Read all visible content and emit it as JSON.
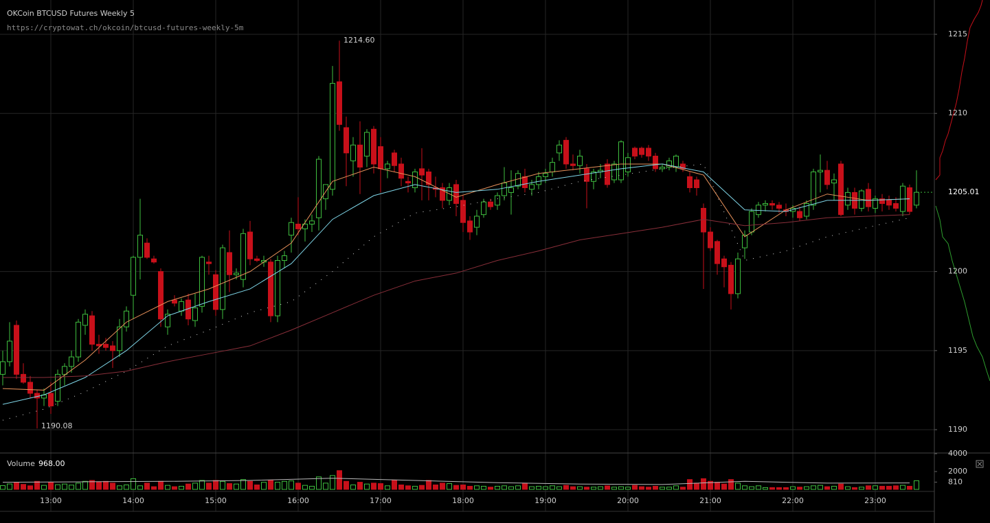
{
  "chart_data": {
    "type": "candlestick",
    "title": "OKCoin BTCUSD Futures Weekly 5",
    "subtitle": "https://cryptowat.ch/okcoin/btcusd-futures-weekly-5m",
    "up_color": "#3fbf3f",
    "down_color": "#c8101a",
    "ylim": [
      1188.96,
      1217.17
    ],
    "yticks": [
      1190,
      1195,
      1200,
      1210,
      1215
    ],
    "last_price": 1205.01,
    "high_label": {
      "value": 1214.6,
      "label": "1214.60"
    },
    "low_label": 1190.08,
    "xlim": [
      -0.4,
      135.6
    ],
    "xticks": [
      {
        "value": 7,
        "label": "13:00"
      },
      {
        "value": 19,
        "label": "14:00"
      },
      {
        "value": 31,
        "label": "15:00"
      },
      {
        "value": 43,
        "label": "16:00"
      },
      {
        "value": 55,
        "label": "17:00"
      },
      {
        "value": 67,
        "label": "18:00"
      },
      {
        "value": 79,
        "label": "19:00"
      },
      {
        "value": 91,
        "label": "20:00"
      },
      {
        "value": 103,
        "label": "21:00"
      },
      {
        "value": 115,
        "label": "22:00"
      },
      {
        "value": 127,
        "label": "23:00"
      }
    ],
    "grid": true,
    "candles": [
      [
        1193.5,
        1195.0,
        1192.8,
        1194.3,
        420
      ],
      [
        1194.3,
        1196.8,
        1194.0,
        1195.6,
        610
      ],
      [
        1196.6,
        1196.9,
        1193.2,
        1193.5,
        800
      ],
      [
        1193.5,
        1194.2,
        1192.9,
        1193.0,
        560
      ],
      [
        1193.0,
        1193.4,
        1192.0,
        1192.3,
        400
      ],
      [
        1192.3,
        1192.5,
        1190.08,
        1192.0,
        900
      ],
      [
        1192.0,
        1192.6,
        1191.5,
        1192.2,
        450
      ],
      [
        1192.3,
        1193.0,
        1191.0,
        1191.5,
        780
      ],
      [
        1191.8,
        1193.8,
        1191.5,
        1193.5,
        520
      ],
      [
        1193.5,
        1194.2,
        1192.8,
        1194.0,
        600
      ],
      [
        1194.0,
        1195.0,
        1193.6,
        1194.6,
        480
      ],
      [
        1194.6,
        1197.0,
        1194.3,
        1196.8,
        700
      ],
      [
        1196.6,
        1197.6,
        1196.0,
        1197.3,
        900
      ],
      [
        1197.2,
        1197.5,
        1195.0,
        1195.4,
        1000
      ],
      [
        1195.4,
        1196.0,
        1194.8,
        1195.3,
        850
      ],
      [
        1195.4,
        1195.8,
        1195.0,
        1195.2,
        900
      ],
      [
        1195.3,
        1195.6,
        1193.9,
        1195.0,
        700
      ],
      [
        1195.0,
        1197.0,
        1194.6,
        1196.5,
        400
      ],
      [
        1196.5,
        1197.8,
        1196.2,
        1197.5,
        500
      ],
      [
        1198.5,
        1201.0,
        1197.0,
        1200.9,
        1200
      ],
      [
        1200.9,
        1204.6,
        1199.5,
        1202.3,
        400
      ],
      [
        1201.8,
        1202.1,
        1200.8,
        1200.9,
        700
      ],
      [
        1200.8,
        1201.0,
        1200.5,
        1200.6,
        300
      ],
      [
        1200.0,
        1200.2,
        1196.5,
        1197.0,
        900
      ],
      [
        1196.5,
        1197.6,
        1196.0,
        1197.3,
        450
      ],
      [
        1198.2,
        1198.5,
        1197.8,
        1198.0,
        300
      ],
      [
        1197.5,
        1198.3,
        1197.2,
        1198.1,
        350
      ],
      [
        1198.2,
        1198.6,
        1196.6,
        1197.0,
        600
      ],
      [
        1196.9,
        1198.6,
        1196.5,
        1197.7,
        700
      ],
      [
        1197.8,
        1201.0,
        1197.4,
        1200.9,
        1000
      ],
      [
        1200.6,
        1201.0,
        1199.8,
        1200.5,
        700
      ],
      [
        1199.8,
        1200.1,
        1197.2,
        1197.6,
        1000
      ],
      [
        1197.6,
        1201.7,
        1197.0,
        1201.5,
        900
      ],
      [
        1201.2,
        1202.6,
        1198.7,
        1199.8,
        650
      ],
      [
        1199.8,
        1200.2,
        1199.5,
        1199.9,
        600
      ],
      [
        1199.5,
        1202.7,
        1199.0,
        1202.4,
        1100
      ],
      [
        1202.5,
        1203.2,
        1200.4,
        1200.8,
        900
      ],
      [
        1200.8,
        1201.0,
        1200.6,
        1200.7,
        500
      ],
      [
        1200.6,
        1201.0,
        1200.3,
        1200.7,
        800
      ],
      [
        1200.6,
        1200.8,
        1196.8,
        1197.2,
        1000
      ],
      [
        1197.2,
        1201.0,
        1196.8,
        1200.7,
        800
      ],
      [
        1200.7,
        1201.3,
        1200.2,
        1201.0,
        900
      ],
      [
        1202.3,
        1203.4,
        1201.2,
        1203.1,
        950
      ],
      [
        1203.0,
        1204.7,
        1202.3,
        1202.7,
        700
      ],
      [
        1202.7,
        1203.3,
        1201.9,
        1203.0,
        450
      ],
      [
        1203.0,
        1203.6,
        1202.5,
        1203.2,
        350
      ],
      [
        1203.4,
        1207.3,
        1202.6,
        1207.1,
        1400
      ],
      [
        1204.6,
        1205.5,
        1203.9,
        1205.5,
        700
      ],
      [
        1205.2,
        1213.0,
        1204.8,
        1211.9,
        1550
      ],
      [
        1212.0,
        1214.6,
        1208.9,
        1209.3,
        2100
      ],
      [
        1209.1,
        1209.8,
        1205.4,
        1207.5,
        900
      ],
      [
        1207.0,
        1208.5,
        1206.0,
        1208.0,
        500
      ],
      [
        1208.0,
        1209.5,
        1204.9,
        1206.6,
        800
      ],
      [
        1207.3,
        1209.0,
        1206.6,
        1208.8,
        600
      ],
      [
        1209.0,
        1209.2,
        1206.2,
        1206.8,
        700
      ],
      [
        1207.9,
        1208.5,
        1205.0,
        1206.5,
        650
      ],
      [
        1206.5,
        1207.0,
        1205.9,
        1206.8,
        400
      ],
      [
        1207.5,
        1207.7,
        1206.3,
        1206.7,
        1000
      ],
      [
        1206.8,
        1207.2,
        1205.4,
        1205.9,
        500
      ],
      [
        1205.7,
        1206.0,
        1205.0,
        1205.6,
        400
      ],
      [
        1205.3,
        1206.5,
        1205.0,
        1206.3,
        350
      ],
      [
        1206.5,
        1207.8,
        1204.5,
        1206.1,
        450
      ],
      [
        1206.3,
        1206.5,
        1204.5,
        1205.5,
        1000
      ],
      [
        1205.3,
        1206.0,
        1204.7,
        1205.2,
        500
      ],
      [
        1205.3,
        1205.6,
        1204.0,
        1204.5,
        700
      ],
      [
        1204.5,
        1205.6,
        1204.2,
        1205.3,
        650
      ],
      [
        1205.5,
        1205.8,
        1203.5,
        1204.3,
        450
      ],
      [
        1204.5,
        1204.8,
        1202.5,
        1203.1,
        500
      ],
      [
        1203.2,
        1203.5,
        1202.0,
        1202.5,
        350
      ],
      [
        1202.8,
        1203.9,
        1202.3,
        1203.5,
        400
      ],
      [
        1203.6,
        1204.6,
        1203.4,
        1204.4,
        350
      ],
      [
        1204.4,
        1204.6,
        1203.9,
        1204.1,
        250
      ],
      [
        1204.2,
        1205.0,
        1203.9,
        1204.8,
        350
      ],
      [
        1204.8,
        1206.6,
        1204.5,
        1205.6,
        400
      ],
      [
        1205.0,
        1206.4,
        1203.6,
        1205.3,
        300
      ],
      [
        1205.4,
        1206.4,
        1205.2,
        1206.2,
        400
      ],
      [
        1206.0,
        1206.5,
        1205.0,
        1205.3,
        700
      ],
      [
        1205.2,
        1205.8,
        1204.8,
        1205.5,
        300
      ],
      [
        1205.5,
        1206.3,
        1205.2,
        1206.0,
        350
      ],
      [
        1206.0,
        1206.5,
        1205.6,
        1206.2,
        300
      ],
      [
        1206.3,
        1207.2,
        1206.0,
        1206.9,
        400
      ],
      [
        1207.5,
        1208.3,
        1207.0,
        1208.0,
        300
      ],
      [
        1208.3,
        1208.5,
        1206.5,
        1206.8,
        450
      ],
      [
        1206.8,
        1207.4,
        1206.4,
        1206.7,
        300
      ],
      [
        1206.7,
        1207.7,
        1206.2,
        1207.3,
        300
      ],
      [
        1206.5,
        1206.8,
        1204.0,
        1205.7,
        250
      ],
      [
        1205.7,
        1206.5,
        1205.2,
        1206.3,
        250
      ],
      [
        1206.3,
        1206.8,
        1205.9,
        1206.4,
        300
      ],
      [
        1206.8,
        1207.1,
        1205.3,
        1205.5,
        400
      ],
      [
        1205.8,
        1207.0,
        1205.6,
        1206.8,
        250
      ],
      [
        1205.8,
        1208.3,
        1205.6,
        1208.2,
        300
      ],
      [
        1206.3,
        1207.5,
        1206.0,
        1207.2,
        250
      ],
      [
        1207.8,
        1207.9,
        1207.1,
        1207.3,
        450
      ],
      [
        1207.8,
        1207.9,
        1207.2,
        1207.4,
        300
      ],
      [
        1207.8,
        1208.0,
        1207.0,
        1207.3,
        250
      ],
      [
        1207.3,
        1207.5,
        1206.3,
        1206.5,
        350
      ],
      [
        1206.5,
        1206.8,
        1206.3,
        1206.6,
        250
      ],
      [
        1206.6,
        1207.2,
        1206.4,
        1207.0,
        250
      ],
      [
        1206.6,
        1207.4,
        1206.3,
        1207.3,
        400
      ],
      [
        1206.8,
        1207.0,
        1206.3,
        1206.5,
        250
      ],
      [
        1206.0,
        1206.3,
        1205.0,
        1205.3,
        1100
      ],
      [
        1205.8,
        1206.0,
        1204.8,
        1205.3,
        700
      ],
      [
        1204.0,
        1204.3,
        1198.9,
        1202.5,
        1200
      ],
      [
        1202.5,
        1202.8,
        1201.3,
        1201.5,
        900
      ],
      [
        1201.9,
        1202.0,
        1199.8,
        1200.5,
        800
      ],
      [
        1200.8,
        1201.0,
        1199.0,
        1200.3,
        600
      ],
      [
        1200.4,
        1200.6,
        1197.6,
        1198.6,
        1100
      ],
      [
        1198.6,
        1201.2,
        1198.3,
        1200.8,
        700
      ],
      [
        1201.5,
        1202.6,
        1200.8,
        1202.3,
        400
      ],
      [
        1202.5,
        1204.0,
        1202.3,
        1203.8,
        300
      ],
      [
        1203.6,
        1204.4,
        1203.4,
        1204.2,
        400
      ],
      [
        1204.2,
        1204.5,
        1203.8,
        1204.3,
        200
      ],
      [
        1204.3,
        1204.5,
        1203.9,
        1204.2,
        200
      ],
      [
        1204.2,
        1204.4,
        1203.7,
        1204.0,
        200
      ],
      [
        1203.9,
        1204.3,
        1203.5,
        1203.8,
        200
      ],
      [
        1203.8,
        1204.2,
        1203.4,
        1204.0,
        300
      ],
      [
        1203.8,
        1204.1,
        1203.2,
        1203.4,
        250
      ],
      [
        1203.5,
        1204.5,
        1203.3,
        1204.3,
        300
      ],
      [
        1204.2,
        1206.5,
        1203.9,
        1206.3,
        400
      ],
      [
        1206.3,
        1207.4,
        1205.0,
        1206.4,
        450
      ],
      [
        1206.4,
        1207.0,
        1205.2,
        1205.5,
        300
      ],
      [
        1205.6,
        1206.2,
        1204.5,
        1205.8,
        350
      ],
      [
        1206.8,
        1207.0,
        1203.5,
        1203.6,
        600
      ],
      [
        1204.2,
        1205.3,
        1203.9,
        1205.0,
        300
      ],
      [
        1205.0,
        1205.3,
        1203.6,
        1204.0,
        200
      ],
      [
        1204.0,
        1205.2,
        1203.8,
        1205.1,
        250
      ],
      [
        1205.2,
        1205.6,
        1203.8,
        1204.1,
        400
      ],
      [
        1204.0,
        1204.8,
        1203.7,
        1204.6,
        400
      ],
      [
        1204.6,
        1204.9,
        1203.8,
        1204.3,
        350
      ],
      [
        1204.5,
        1204.8,
        1203.9,
        1204.2,
        350
      ],
      [
        1204.3,
        1204.7,
        1203.8,
        1204.0,
        400
      ],
      [
        1203.8,
        1205.6,
        1203.5,
        1205.4,
        450
      ],
      [
        1205.3,
        1205.5,
        1203.6,
        1203.8,
        350
      ],
      [
        1204.2,
        1206.4,
        1204.0,
        1205.01,
        968
      ]
    ],
    "overlays": [
      {
        "color": "#e8915a",
        "x": [
          0,
          6,
          12,
          18,
          24,
          30,
          36,
          42,
          48,
          54,
          60,
          66,
          72,
          78,
          84,
          90,
          96,
          102,
          108,
          114,
          120,
          126,
          132
        ],
        "values": [
          1192.6,
          1192.5,
          1194.4,
          1196.8,
          1198.1,
          1198.9,
          1200.0,
          1201.8,
          1205.7,
          1206.6,
          1206.0,
          1204.7,
          1205.5,
          1206.2,
          1206.5,
          1206.8,
          1206.8,
          1206.1,
          1202.2,
          1203.9,
          1204.9,
          1204.5,
          1204.6
        ]
      },
      {
        "color": "#7fd6e8",
        "x": [
          0,
          6,
          12,
          18,
          24,
          30,
          36,
          42,
          48,
          54,
          60,
          66,
          72,
          78,
          84,
          90,
          96,
          102,
          108,
          114,
          120,
          126,
          132
        ],
        "values": [
          1191.6,
          1192.2,
          1193.3,
          1195.0,
          1197.2,
          1198.1,
          1198.9,
          1200.5,
          1203.3,
          1204.8,
          1205.5,
          1205.0,
          1205.2,
          1205.7,
          1206.1,
          1206.5,
          1206.8,
          1206.3,
          1203.9,
          1203.8,
          1204.5,
          1204.5,
          1204.6
        ]
      },
      {
        "color": "#8a2f3a",
        "x": [
          0,
          6,
          12,
          18,
          24,
          30,
          36,
          42,
          48,
          54,
          60,
          66,
          72,
          78,
          84,
          90,
          96,
          102,
          108,
          114,
          120,
          126,
          132
        ],
        "values": [
          1193.3,
          1193.3,
          1193.4,
          1193.7,
          1194.3,
          1194.8,
          1195.3,
          1196.3,
          1197.4,
          1198.5,
          1199.4,
          1199.9,
          1200.7,
          1201.3,
          1202.0,
          1202.4,
          1202.8,
          1203.3,
          1202.9,
          1203.1,
          1203.4,
          1203.5,
          1203.6
        ]
      },
      {
        "color": "#dddddd",
        "style": "dotted",
        "x": [
          0,
          6,
          12,
          18,
          24,
          30,
          36,
          42,
          48,
          54,
          60,
          66,
          72,
          78,
          84,
          90,
          96,
          102,
          108,
          114,
          120,
          126,
          132
        ],
        "values": [
          1190.6,
          1191.3,
          1192.4,
          1193.7,
          1195.3,
          1196.3,
          1197.4,
          1198.1,
          1200.0,
          1202.2,
          1203.7,
          1204.1,
          1204.6,
          1205.0,
          1205.7,
          1206.1,
          1206.5,
          1206.8,
          1200.7,
          1201.3,
          1202.2,
          1202.8,
          1203.4
        ]
      }
    ],
    "volume_title": "Volume",
    "volume_current": {
      "value": 968,
      "label": "968.00"
    },
    "vlim": [
      0,
      4000
    ],
    "vticks": [
      4000,
      2000,
      810
    ],
    "volume_overlay": {
      "color": "#bbbbbb",
      "x": [
        0,
        12,
        24,
        36,
        48,
        60,
        72,
        84,
        96,
        108,
        120,
        132
      ],
      "values": [
        800,
        850,
        900,
        1000,
        1250,
        1000,
        750,
        600,
        550,
        900,
        700,
        720
      ]
    }
  }
}
